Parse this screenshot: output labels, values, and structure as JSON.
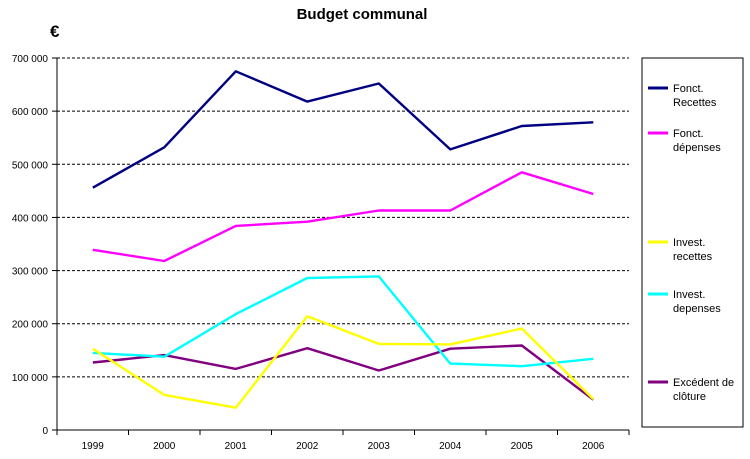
{
  "chart_data": {
    "type": "line",
    "title": "Budget communal",
    "ylabel": "€",
    "xlabel": "",
    "categories": [
      "1999",
      "2000",
      "2001",
      "2002",
      "2003",
      "2004",
      "2005",
      "2006"
    ],
    "ylim": [
      0,
      700000
    ],
    "yticks": [
      0,
      100000,
      200000,
      300000,
      400000,
      500000,
      600000,
      700000
    ],
    "ytick_labels": [
      "0",
      "100 000",
      "200 000",
      "300 000",
      "400 000",
      "500 000",
      "600 000",
      "700 000"
    ],
    "grid": true,
    "legend_position": "right",
    "series": [
      {
        "name": "Fonct. Recettes",
        "legend_lines": [
          "Fonct.",
          "Recettes"
        ],
        "color": "#000080",
        "values": [
          456000,
          532000,
          675000,
          618000,
          652000,
          528000,
          572000,
          579000
        ]
      },
      {
        "name": "Fonct. dépenses",
        "legend_lines": [
          "Fonct.",
          "dépenses"
        ],
        "color": "#ff00ff",
        "values": [
          339000,
          318000,
          384000,
          392000,
          413000,
          413000,
          485000,
          444000
        ]
      },
      {
        "name": "Invest. recettes",
        "legend_lines": [
          "Invest.",
          "recettes"
        ],
        "color": "#ffff00",
        "values": [
          153000,
          66000,
          42000,
          214000,
          162000,
          161000,
          191000,
          58000
        ]
      },
      {
        "name": "Invest. depenses",
        "legend_lines": [
          "Invest.",
          "depenses"
        ],
        "color": "#00ffff",
        "values": [
          145000,
          138000,
          218000,
          286000,
          289000,
          125000,
          120000,
          134000
        ]
      },
      {
        "name": "Excédent de clôture",
        "legend_lines": [
          "Excédent  de",
          "clôture"
        ],
        "color": "#800080",
        "values": [
          127000,
          141000,
          115000,
          154000,
          112000,
          153000,
          159000,
          57000
        ]
      }
    ]
  }
}
